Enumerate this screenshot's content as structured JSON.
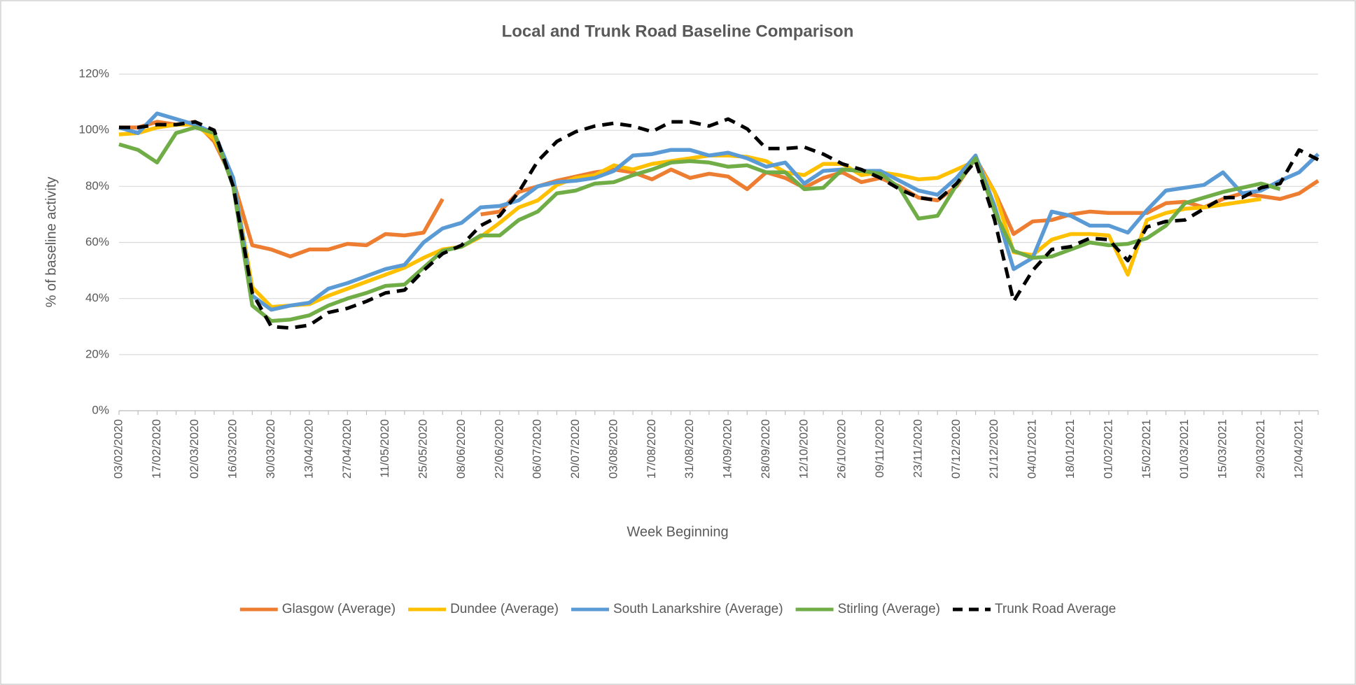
{
  "chart_data": {
    "type": "line",
    "title": "Local and Trunk Road Baseline Comparison",
    "x_label": "Week Beginning",
    "y_label": "% of baseline activity",
    "categories": [
      "03/02/2020",
      null,
      "17/02/2020",
      null,
      "02/03/2020",
      null,
      "16/03/2020",
      null,
      "30/03/2020",
      null,
      "13/04/2020",
      null,
      "27/04/2020",
      null,
      "11/05/2020",
      null,
      "25/05/2020",
      null,
      "08/06/2020",
      null,
      "22/06/2020",
      null,
      "06/07/2020",
      null,
      "20/07/2020",
      null,
      "03/08/2020",
      null,
      "17/08/2020",
      null,
      "31/08/2020",
      null,
      "14/09/2020",
      null,
      "28/09/2020",
      null,
      "12/10/2020",
      null,
      "26/10/2020",
      null,
      "09/11/2020",
      null,
      "23/11/2020",
      null,
      "07/12/2020",
      null,
      "21/12/2020",
      null,
      "04/01/2021",
      null,
      "18/01/2021",
      null,
      "01/02/2021",
      null,
      "15/02/2021",
      null,
      "01/03/2021",
      null,
      "15/03/2021",
      null,
      "29/03/2021",
      null,
      "12/04/2021",
      null
    ],
    "series": [
      {
        "name": "Glasgow (Average)",
        "color": "#ED7D31",
        "dashed": false,
        "values": [
          101,
          101,
          103,
          102,
          103,
          96,
          82,
          59,
          57.5,
          55,
          57.5,
          57.5,
          59.5,
          59,
          63,
          62.5,
          63.5,
          75.5,
          null,
          70,
          71,
          78,
          80,
          82,
          83.5,
          85,
          86,
          85,
          82.5,
          86,
          83,
          84.5,
          83.5,
          79,
          85,
          83,
          79.5,
          83,
          85,
          81.5,
          83,
          80,
          76,
          75,
          80,
          90,
          78,
          63,
          67.5,
          68,
          70,
          71,
          70.5,
          70.5,
          70.5,
          74,
          74.5,
          72.5,
          75.5,
          77.5,
          76.5,
          75.5,
          77.5,
          82
        ]
      },
      {
        "name": "Dundee (Average)",
        "color": "#FFC000",
        "dashed": false,
        "values": [
          98.5,
          99,
          101,
          102,
          102,
          97,
          83,
          44,
          37,
          37.5,
          38,
          41,
          43.5,
          46,
          48.5,
          51,
          54.5,
          57.5,
          58.5,
          62,
          67,
          72.5,
          75,
          80.5,
          83,
          84,
          87.5,
          86,
          88,
          89,
          90,
          91,
          91,
          90.5,
          89,
          85,
          84,
          88,
          88,
          84,
          85,
          84,
          82.5,
          83,
          86,
          89,
          78,
          56.5,
          55.5,
          61,
          63,
          63,
          62.5,
          48.5,
          68,
          70.5,
          72,
          72.5,
          73.5,
          74.5,
          75.5,
          null,
          null,
          null
        ]
      },
      {
        "name": "South Lanarkshire (Average)",
        "color": "#5B9BD5",
        "dashed": false,
        "values": [
          101,
          99,
          106,
          104,
          102,
          99,
          83,
          41,
          36,
          37.5,
          38.5,
          43.5,
          45.5,
          48,
          50.5,
          52,
          60,
          65,
          67,
          72.5,
          73,
          75,
          80,
          81.5,
          82,
          83,
          85.5,
          91,
          91.5,
          93,
          93,
          91,
          92,
          90,
          87,
          88.5,
          81,
          85.5,
          86,
          85.5,
          85.5,
          82,
          78.5,
          77,
          83,
          91,
          73,
          50.5,
          54.5,
          71,
          69.5,
          66,
          66,
          63.5,
          71.5,
          78.5,
          79.5,
          80.5,
          85,
          77.5,
          78.5,
          82,
          85,
          91.5
        ]
      },
      {
        "name": "Stirling (Average)",
        "color": "#70AD47",
        "dashed": false,
        "values": [
          95,
          93,
          88.5,
          99,
          101,
          99,
          80,
          37.5,
          32,
          32.5,
          34,
          37.5,
          40,
          42,
          44.5,
          45,
          51,
          57,
          58.5,
          62.5,
          62.5,
          68,
          71,
          77.5,
          78.5,
          81,
          81.5,
          84,
          86,
          88.5,
          89,
          88.5,
          87,
          87.5,
          85,
          85,
          79,
          79.5,
          86,
          85.5,
          84.5,
          79.5,
          68.5,
          69.5,
          80.5,
          90,
          71,
          57,
          54.5,
          55,
          57.5,
          60,
          59,
          59.5,
          61.5,
          66,
          74,
          76,
          78,
          79.5,
          81,
          79,
          null,
          null
        ]
      },
      {
        "name": "Trunk Road Average",
        "color": "#000000",
        "dashed": true,
        "values": [
          101,
          101,
          102,
          102,
          103,
          100,
          80,
          42,
          30,
          29.5,
          30.5,
          35,
          36.5,
          39,
          42,
          43,
          50,
          56,
          59,
          66,
          69.5,
          78,
          89,
          96,
          99.5,
          101.5,
          102.5,
          101.5,
          99.5,
          103,
          103,
          101.5,
          104,
          100.5,
          93.5,
          93.5,
          94,
          91.5,
          88,
          86,
          83,
          79,
          76,
          75,
          81,
          89,
          68,
          39,
          50,
          57.5,
          58.5,
          61.5,
          61,
          53.5,
          65.5,
          67.5,
          68,
          72,
          76,
          76,
          79.5,
          81,
          93,
          89.5
        ]
      }
    ],
    "ylim": [
      0,
      120
    ],
    "yticks": [
      {
        "value": 0,
        "label": "0%"
      },
      {
        "value": 20,
        "label": "20%"
      },
      {
        "value": 40,
        "label": "40%"
      },
      {
        "value": 60,
        "label": "60%"
      },
      {
        "value": 80,
        "label": "80%"
      },
      {
        "value": 100,
        "label": "100%"
      },
      {
        "value": 120,
        "label": "120%"
      }
    ],
    "grid": true,
    "legend": "bottom"
  }
}
